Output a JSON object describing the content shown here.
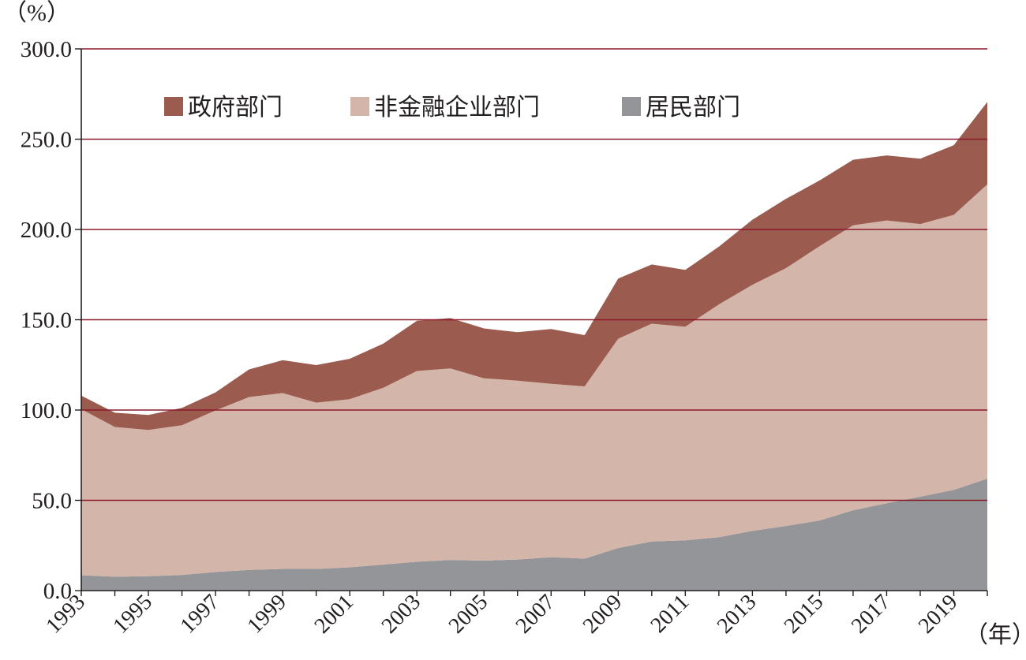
{
  "chart_data": {
    "type": "area",
    "stacked": true,
    "y_unit_label": "（%）",
    "x_unit_label": "（年）",
    "ylim": [
      0,
      300
    ],
    "yticks": [
      "0.0",
      "50.0",
      "100.0",
      "150.0",
      "200.0",
      "250.0",
      "300.0"
    ],
    "ytick_values": [
      0,
      50,
      100,
      150,
      200,
      250,
      300
    ],
    "xlim": [
      1993,
      2020
    ],
    "xtick_labels": [
      "1993",
      "1995",
      "1997",
      "1999",
      "2001",
      "2003",
      "2005",
      "2007",
      "2009",
      "2011",
      "2013",
      "2015",
      "2017",
      "2019"
    ],
    "grid": "horizontal",
    "legend_position": "top-left",
    "x": [
      1993,
      1994,
      1995,
      1996,
      1997,
      1998,
      1999,
      2000,
      2001,
      2002,
      2003,
      2004,
      2005,
      2006,
      2007,
      2008,
      2009,
      2010,
      2011,
      2012,
      2013,
      2014,
      2015,
      2016,
      2017,
      2018,
      2019,
      2020
    ],
    "series": [
      {
        "name": "居民部门",
        "color": "#939598",
        "values": [
          8.5,
          7.7,
          8.0,
          8.7,
          10.3,
          11.5,
          12.0,
          12.0,
          12.9,
          14.4,
          16.0,
          17.0,
          16.6,
          17.2,
          18.5,
          17.7,
          23.6,
          27.2,
          27.8,
          29.6,
          33.1,
          35.8,
          38.8,
          44.5,
          48.4,
          52.0,
          55.8,
          62.0
        ]
      },
      {
        "name": "非金融企业部门",
        "color": "#d3b5aa",
        "values": [
          92.0,
          82.9,
          81.0,
          82.9,
          89.5,
          95.7,
          97.4,
          92.1,
          93.1,
          97.9,
          105.6,
          106.0,
          101.0,
          99.1,
          96.0,
          95.4,
          115.9,
          120.6,
          118.3,
          128.9,
          136.3,
          142.8,
          151.9,
          157.8,
          156.6,
          151.0,
          152.3,
          163.0
        ]
      },
      {
        "name": "政府部门",
        "color": "#9b5b4e",
        "values": [
          7.5,
          7.9,
          8.3,
          9.6,
          10.0,
          15.3,
          18.2,
          20.8,
          22.4,
          24.5,
          27.8,
          27.9,
          27.6,
          26.8,
          30.4,
          28.4,
          33.3,
          32.8,
          31.5,
          32.0,
          36.0,
          38.4,
          36.4,
          36.3,
          36.0,
          36.2,
          38.6,
          45.6
        ]
      }
    ],
    "legend_order": [
      "政府部门",
      "非金融企业部门",
      "居民部门"
    ],
    "grid_color": "#8b1a2b",
    "axis_color": "#231f20"
  }
}
